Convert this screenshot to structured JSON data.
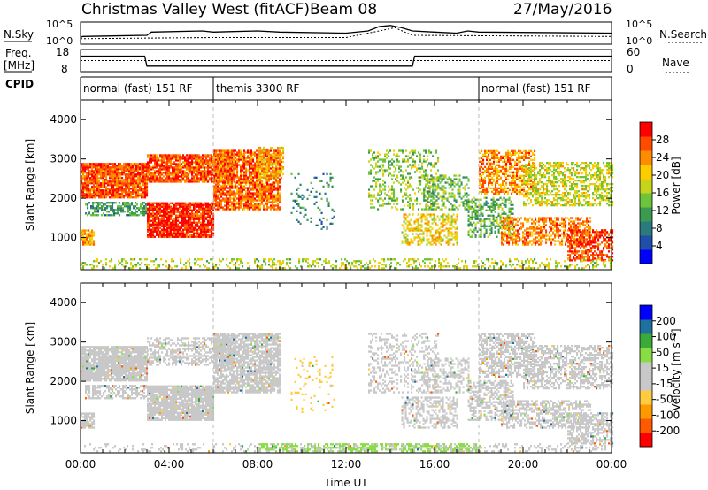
{
  "header": {
    "title": "Christmas Valley West (fitACF)",
    "beam": "Beam 08",
    "date": "27/May/2016"
  },
  "aux_panels": {
    "nsky_label": "N.Sky",
    "nsky_ticks": [
      "10^5",
      "10^0"
    ],
    "nsearch_label": "N.Search",
    "freq_label_line1": "Freq.",
    "freq_label_line2": "[MHz]",
    "freq_ticks": [
      "18",
      "8"
    ],
    "nave_label": "Nave",
    "nave_ticks": [
      "60",
      "0"
    ],
    "cpid_label": "CPID",
    "cpid_modes": [
      {
        "label": "normal (fast) 151 RF",
        "start_hour": 0,
        "end_hour": 6
      },
      {
        "label": "themis 3300 RF",
        "start_hour": 6,
        "end_hour": 18
      },
      {
        "label": "normal (fast) 151 RF",
        "start_hour": 18,
        "end_hour": 24
      }
    ],
    "nsky_series": [
      [
        0,
        0.3
      ],
      [
        0.1,
        0.35
      ],
      [
        3,
        0.4
      ],
      [
        3.2,
        0.55
      ],
      [
        5.5,
        0.6
      ],
      [
        6,
        0.55
      ],
      [
        8,
        0.6
      ],
      [
        9,
        0.55
      ],
      [
        12,
        0.5
      ],
      [
        13,
        0.6
      ],
      [
        13.5,
        0.8
      ],
      [
        14,
        0.85
      ],
      [
        14.5,
        0.75
      ],
      [
        15,
        0.6
      ],
      [
        16,
        0.55
      ],
      [
        17,
        0.5
      ],
      [
        17.5,
        0.6
      ],
      [
        18,
        0.55
      ],
      [
        24,
        0.5
      ]
    ],
    "nsearch_series": [
      [
        0,
        0.25
      ],
      [
        6,
        0.3
      ],
      [
        12,
        0.3
      ],
      [
        13.5,
        0.6
      ],
      [
        14.2,
        0.75
      ],
      [
        15,
        0.4
      ],
      [
        24,
        0.35
      ]
    ],
    "freq_series": [
      [
        0,
        0.7
      ],
      [
        2.9,
        0.7
      ],
      [
        3.0,
        0.25
      ],
      [
        15,
        0.25
      ],
      [
        15.1,
        0.7
      ],
      [
        24,
        0.7
      ]
    ],
    "nave_series": [
      [
        0,
        0.5
      ],
      [
        24,
        0.5
      ]
    ]
  },
  "chart_data": [
    {
      "type": "heatmap",
      "name": "power",
      "xlabel": "",
      "ylabel": "Slant Range [km]",
      "xlim": [
        0,
        24
      ],
      "ylim": [
        180,
        4500
      ],
      "yticks": [
        1000,
        2000,
        3000,
        4000
      ],
      "colorbar": {
        "label": "Power [dB]",
        "ticks": [
          "28",
          "24",
          "20",
          "16",
          "12",
          "8",
          "4"
        ],
        "range": [
          0,
          32
        ],
        "colors": [
          "#0000ff",
          "#1f4faa",
          "#2a7a80",
          "#3c9a50",
          "#6dc43a",
          "#c8d41c",
          "#ffcc00",
          "#ff8c00",
          "#ff4a00",
          "#ff0000"
        ]
      },
      "regions": [
        {
          "t0": 0.0,
          "t1": 3.0,
          "r0": 2000,
          "r1": 2900,
          "value": 27,
          "density": 0.9
        },
        {
          "t0": 0.0,
          "t1": 0.6,
          "r0": 800,
          "r1": 1200,
          "value": 23,
          "density": 0.8
        },
        {
          "t0": 0.2,
          "t1": 3.0,
          "r0": 1550,
          "r1": 1900,
          "value": 11,
          "density": 0.6
        },
        {
          "t0": 3.0,
          "t1": 6.0,
          "r0": 1000,
          "r1": 1900,
          "value": 29,
          "density": 0.9
        },
        {
          "t0": 3.0,
          "t1": 7.0,
          "r0": 2400,
          "r1": 3100,
          "value": 27,
          "density": 0.85
        },
        {
          "t0": 6.0,
          "t1": 9.0,
          "r0": 1700,
          "r1": 3200,
          "value": 26,
          "density": 0.8
        },
        {
          "t0": 8.0,
          "t1": 9.2,
          "r0": 2500,
          "r1": 3300,
          "value": 21,
          "density": 0.5
        },
        {
          "t0": 9.5,
          "t1": 11.5,
          "r0": 1200,
          "r1": 2600,
          "value": 9,
          "density": 0.1
        },
        {
          "t0": 13.0,
          "t1": 16.2,
          "r0": 1700,
          "r1": 3200,
          "value": 15,
          "density": 0.3
        },
        {
          "t0": 14.5,
          "t1": 17.0,
          "r0": 800,
          "r1": 1600,
          "value": 20,
          "density": 0.45
        },
        {
          "t0": 15.5,
          "t1": 17.5,
          "r0": 1700,
          "r1": 2600,
          "value": 14,
          "density": 0.4
        },
        {
          "t0": 17.5,
          "t1": 19.5,
          "r0": 1000,
          "r1": 2000,
          "value": 13,
          "density": 0.5
        },
        {
          "t0": 18.0,
          "t1": 20.5,
          "r0": 2100,
          "r1": 3200,
          "value": 24,
          "density": 0.6
        },
        {
          "t0": 19.0,
          "t1": 23.0,
          "r0": 800,
          "r1": 1500,
          "value": 25,
          "density": 0.55
        },
        {
          "t0": 20.0,
          "t1": 24.0,
          "r0": 1800,
          "r1": 2900,
          "value": 18,
          "density": 0.5
        },
        {
          "t0": 22.0,
          "t1": 24.0,
          "r0": 400,
          "r1": 1200,
          "value": 28,
          "density": 0.6
        },
        {
          "t0": 0.0,
          "t1": 24.0,
          "r0": 200,
          "r1": 450,
          "value": 17,
          "density": 0.3
        }
      ]
    },
    {
      "type": "heatmap",
      "name": "velocity",
      "xlabel": "Time UT",
      "ylabel": "Slant Range [km]",
      "xlim": [
        0,
        24
      ],
      "ylim": [
        180,
        4500
      ],
      "yticks": [
        1000,
        2000,
        3000,
        4000
      ],
      "xticks": [
        "00:00",
        "04:00",
        "08:00",
        "12:00",
        "16:00",
        "20:00",
        "00:00"
      ],
      "colorbar": {
        "label": "Velocity [m s⁻¹]",
        "ticks": [
          "200",
          "100",
          "50",
          "15",
          "-15",
          "-50",
          "-100",
          "-200"
        ],
        "range": [
          -250,
          250
        ],
        "colors": [
          "#ff0000",
          "#ff5a00",
          "#ff9900",
          "#ffcc40",
          "#c8c8c8",
          "#c8c8c8",
          "#88dd44",
          "#3aaa3a",
          "#1f6f9f",
          "#0000ff"
        ]
      },
      "regions": [
        {
          "t0": 0.0,
          "t1": 3.0,
          "r0": 2000,
          "r1": 2900,
          "value": 0,
          "density": 0.9
        },
        {
          "t0": 0.0,
          "t1": 0.6,
          "r0": 800,
          "r1": 1200,
          "value": 0,
          "density": 0.8
        },
        {
          "t0": 0.2,
          "t1": 3.0,
          "r0": 1550,
          "r1": 1900,
          "value": 0,
          "density": 0.6
        },
        {
          "t0": 3.0,
          "t1": 6.0,
          "r0": 1000,
          "r1": 1900,
          "value": 0,
          "density": 0.9
        },
        {
          "t0": 3.0,
          "t1": 7.0,
          "r0": 2400,
          "r1": 3100,
          "value": -40,
          "density": 0.5
        },
        {
          "t0": 6.0,
          "t1": 9.0,
          "r0": 1700,
          "r1": 3200,
          "value": 0,
          "density": 0.8
        },
        {
          "t0": 9.5,
          "t1": 11.5,
          "r0": 1200,
          "r1": 2600,
          "value": -60,
          "density": 0.1
        },
        {
          "t0": 13.0,
          "t1": 16.2,
          "r0": 1700,
          "r1": 3200,
          "value": 0,
          "density": 0.3
        },
        {
          "t0": 14.5,
          "t1": 17.0,
          "r0": 800,
          "r1": 1600,
          "value": 0,
          "density": 0.45
        },
        {
          "t0": 15.5,
          "t1": 17.5,
          "r0": 1700,
          "r1": 2600,
          "value": 0,
          "density": 0.4
        },
        {
          "t0": 17.5,
          "t1": 19.5,
          "r0": 1000,
          "r1": 2000,
          "value": 0,
          "density": 0.5
        },
        {
          "t0": 18.0,
          "t1": 20.5,
          "r0": 2100,
          "r1": 3200,
          "value": 0,
          "density": 0.6
        },
        {
          "t0": 19.0,
          "t1": 23.0,
          "r0": 800,
          "r1": 1500,
          "value": 0,
          "density": 0.55
        },
        {
          "t0": 20.0,
          "t1": 24.0,
          "r0": 1800,
          "r1": 2900,
          "value": 0,
          "density": 0.5
        },
        {
          "t0": 22.0,
          "t1": 24.0,
          "r0": 400,
          "r1": 1200,
          "value": 0,
          "density": 0.6
        },
        {
          "t0": 8.0,
          "t1": 18.0,
          "r0": 200,
          "r1": 420,
          "value": 70,
          "density": 0.55
        },
        {
          "t0": 0.0,
          "t1": 24.0,
          "r0": 200,
          "r1": 400,
          "value": 40,
          "density": 0.2
        }
      ]
    }
  ]
}
